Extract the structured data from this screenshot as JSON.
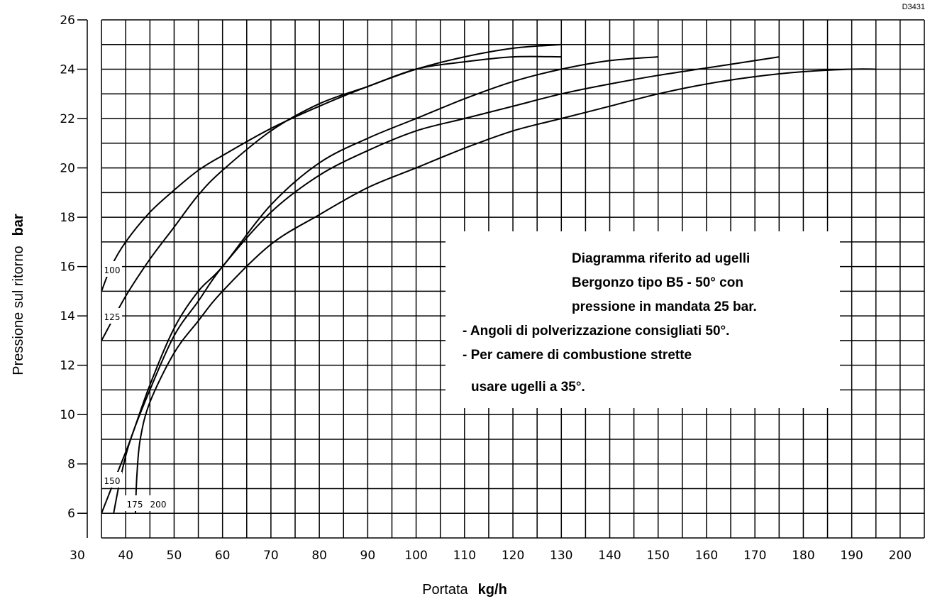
{
  "chart_data": {
    "type": "line",
    "drawing_code": "D3431",
    "xlabel": {
      "text": "Portata",
      "unit": "kg/h"
    },
    "ylabel": {
      "text": "Pressione sul ritorno",
      "unit": "bar"
    },
    "xlim": [
      30,
      205
    ],
    "ylim": [
      5,
      26
    ],
    "x_ticks": [
      30,
      40,
      50,
      60,
      70,
      80,
      90,
      100,
      110,
      120,
      130,
      140,
      150,
      160,
      170,
      180,
      190,
      200
    ],
    "y_ticks": [
      6,
      8,
      10,
      12,
      14,
      16,
      18,
      20,
      22,
      24,
      26
    ],
    "grid": true,
    "x_grid_step": 5,
    "y_grid_step": 1,
    "series": [
      {
        "label": "100",
        "points": [
          [
            35,
            15
          ],
          [
            37,
            16
          ],
          [
            40,
            17
          ],
          [
            45,
            18.2
          ],
          [
            50,
            19.1
          ],
          [
            55,
            19.9
          ],
          [
            60,
            20.5
          ],
          [
            70,
            21.6
          ],
          [
            80,
            22.5
          ],
          [
            90,
            23.3
          ],
          [
            100,
            24
          ],
          [
            110,
            24.5
          ],
          [
            120,
            24.85
          ],
          [
            130,
            25
          ]
        ]
      },
      {
        "label": "125",
        "points": [
          [
            35,
            13
          ],
          [
            40,
            14.8
          ],
          [
            45,
            16.3
          ],
          [
            50,
            17.6
          ],
          [
            55,
            18.9
          ],
          [
            60,
            19.9
          ],
          [
            70,
            21.5
          ],
          [
            80,
            22.6
          ],
          [
            90,
            23.3
          ],
          [
            100,
            24
          ],
          [
            110,
            24.3
          ],
          [
            120,
            24.5
          ],
          [
            130,
            24.5
          ]
        ]
      },
      {
        "label": "150",
        "points": [
          [
            35,
            6
          ],
          [
            38,
            7.5
          ],
          [
            41,
            9
          ],
          [
            45,
            11.2
          ],
          [
            50,
            13.5
          ],
          [
            55,
            15
          ],
          [
            60,
            16
          ],
          [
            70,
            18.5
          ],
          [
            80,
            20.2
          ],
          [
            90,
            21.2
          ],
          [
            100,
            22
          ],
          [
            110,
            22.8
          ],
          [
            120,
            23.5
          ],
          [
            130,
            24
          ],
          [
            140,
            24.35
          ],
          [
            150,
            24.5
          ]
        ]
      },
      {
        "label": "175",
        "points": [
          [
            37.5,
            6
          ],
          [
            39,
            7.5
          ],
          [
            41,
            9
          ],
          [
            45,
            11
          ],
          [
            50,
            13.2
          ],
          [
            55,
            14.6
          ],
          [
            60,
            16
          ],
          [
            70,
            18.2
          ],
          [
            80,
            19.7
          ],
          [
            90,
            20.7
          ],
          [
            100,
            21.5
          ],
          [
            110,
            22
          ],
          [
            120,
            22.5
          ],
          [
            130,
            23
          ],
          [
            140,
            23.4
          ],
          [
            150,
            23.75
          ],
          [
            160,
            24.05
          ],
          [
            170,
            24.35
          ],
          [
            175,
            24.5
          ]
        ]
      },
      {
        "label": "200",
        "points": [
          [
            42,
            6
          ],
          [
            42.3,
            7.5
          ],
          [
            43,
            9
          ],
          [
            45,
            10.5
          ],
          [
            50,
            12.5
          ],
          [
            55,
            13.8
          ],
          [
            60,
            15
          ],
          [
            70,
            16.9
          ],
          [
            80,
            18.1
          ],
          [
            90,
            19.2
          ],
          [
            100,
            20
          ],
          [
            110,
            20.8
          ],
          [
            120,
            21.5
          ],
          [
            130,
            22
          ],
          [
            140,
            22.5
          ],
          [
            150,
            23
          ],
          [
            160,
            23.4
          ],
          [
            170,
            23.7
          ],
          [
            180,
            23.9
          ],
          [
            190,
            24
          ],
          [
            195,
            24
          ]
        ]
      }
    ],
    "annotation": [
      "Diagramma riferito ad ugelli",
      "Bergonzo tipo B5 - 50° con",
      "pressione in mandata 25 bar.",
      "- Angoli di polverizzazione consigliati 50°.",
      "- Per camere di combustione strette",
      "usare ugelli a 35°."
    ]
  }
}
